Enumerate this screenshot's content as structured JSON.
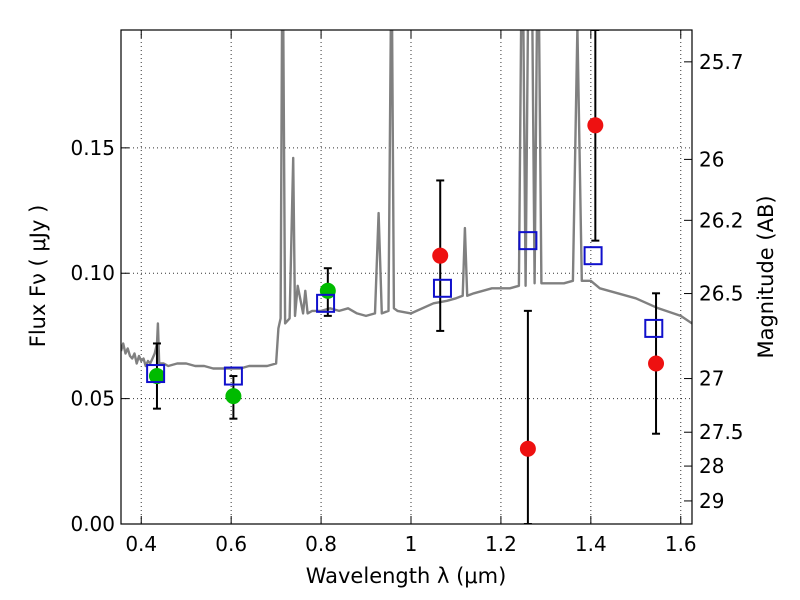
{
  "chart_data": {
    "type": "scatter",
    "xlabel": "Wavelength  λ (μm)",
    "ylabel": "Flux  Fν  ( μJy )",
    "y2label": "Magnitude (AB)",
    "xlim": [
      0.355,
      1.625
    ],
    "ylim": [
      0.0,
      0.197
    ],
    "xticks": [
      0.4,
      0.6,
      0.8,
      1.0,
      1.2,
      1.4,
      1.6
    ],
    "xtick_labels": [
      "0.4",
      "0.6",
      "0.8",
      "1",
      "1.2",
      "1.4",
      "1.6"
    ],
    "yticks": [
      0.0,
      0.05,
      0.1,
      0.15
    ],
    "ytick_labels": [
      "0.00",
      "0.05",
      "0.10",
      "0.15"
    ],
    "y2ticks": [
      {
        "label": "25.7",
        "flux": 0.1843
      },
      {
        "label": "26",
        "flux": 0.1454
      },
      {
        "label": "26.2",
        "flux": 0.1211
      },
      {
        "label": "26.5",
        "flux": 0.0919
      },
      {
        "label": "27",
        "flux": 0.058
      },
      {
        "label": "27.5",
        "flux": 0.0366
      },
      {
        "label": "28",
        "flux": 0.0231
      },
      {
        "label": "29",
        "flux": 0.0092
      }
    ],
    "grid": true,
    "colors": {
      "spectrum": "#808080",
      "green_points": "#00bb00",
      "red_points": "#ee1111",
      "model_squares": "#1010cc",
      "errorbars": "#000000"
    },
    "series": [
      {
        "kind": "line",
        "color": "#808080",
        "x": [
          0.355,
          0.36,
          0.365,
          0.37,
          0.375,
          0.38,
          0.385,
          0.39,
          0.395,
          0.4,
          0.405,
          0.41,
          0.415,
          0.42,
          0.425,
          0.43,
          0.435,
          0.437,
          0.44,
          0.45,
          0.46,
          0.48,
          0.5,
          0.52,
          0.54,
          0.56,
          0.58,
          0.6,
          0.62,
          0.64,
          0.66,
          0.68,
          0.7,
          0.705,
          0.71,
          0.713,
          0.716,
          0.72,
          0.73,
          0.738,
          0.742,
          0.748,
          0.76,
          0.765,
          0.77,
          0.78,
          0.8,
          0.82,
          0.84,
          0.86,
          0.88,
          0.9,
          0.92,
          0.928,
          0.935,
          0.95,
          0.955,
          0.958,
          0.962,
          0.97,
          1.0,
          1.05,
          1.08,
          1.1,
          1.115,
          1.12,
          1.125,
          1.14,
          1.16,
          1.18,
          1.2,
          1.22,
          1.24,
          1.245,
          1.25,
          1.255,
          1.26,
          1.27,
          1.275,
          1.28,
          1.285,
          1.29,
          1.3,
          1.34,
          1.36,
          1.37,
          1.38,
          1.4,
          1.42,
          1.46,
          1.5,
          1.55,
          1.6,
          1.625
        ],
        "y": [
          0.069,
          0.072,
          0.068,
          0.07,
          0.067,
          0.066,
          0.068,
          0.064,
          0.067,
          0.065,
          0.066,
          0.063,
          0.065,
          0.064,
          0.066,
          0.068,
          0.072,
          0.08,
          0.064,
          0.064,
          0.063,
          0.064,
          0.064,
          0.063,
          0.063,
          0.062,
          0.062,
          0.062,
          0.062,
          0.063,
          0.063,
          0.063,
          0.064,
          0.078,
          0.082,
          0.198,
          0.198,
          0.08,
          0.082,
          0.146,
          0.083,
          0.095,
          0.084,
          0.093,
          0.084,
          0.085,
          0.085,
          0.086,
          0.085,
          0.086,
          0.084,
          0.083,
          0.084,
          0.124,
          0.084,
          0.085,
          0.198,
          0.198,
          0.086,
          0.085,
          0.084,
          0.088,
          0.089,
          0.09,
          0.091,
          0.118,
          0.091,
          0.092,
          0.093,
          0.094,
          0.094,
          0.094,
          0.095,
          0.198,
          0.198,
          0.095,
          0.198,
          0.198,
          0.096,
          0.198,
          0.198,
          0.096,
          0.096,
          0.096,
          0.097,
          0.198,
          0.097,
          0.097,
          0.094,
          0.092,
          0.09,
          0.086,
          0.083,
          0.08
        ]
      },
      {
        "kind": "points",
        "marker": "circle",
        "color": "#00bb00",
        "x": [
          0.435,
          0.605,
          0.815
        ],
        "y": [
          0.059,
          0.051,
          0.093
        ],
        "yerr_low": [
          0.046,
          0.042,
          0.083
        ],
        "yerr_high": [
          0.072,
          0.059,
          0.102
        ]
      },
      {
        "kind": "points",
        "marker": "circle",
        "color": "#ee1111",
        "x": [
          1.065,
          1.26,
          1.41,
          1.545
        ],
        "y": [
          0.107,
          0.03,
          0.159,
          0.064
        ],
        "yerr_low": [
          0.077,
          0.0,
          0.113,
          0.036
        ],
        "yerr_high": [
          0.137,
          0.085,
          0.197,
          0.092
        ]
      },
      {
        "kind": "points",
        "marker": "square",
        "color": "#1010cc",
        "x": [
          0.432,
          0.605,
          0.81,
          1.07,
          1.26,
          1.405,
          1.54
        ],
        "y": [
          0.06,
          0.059,
          0.088,
          0.094,
          0.113,
          0.107,
          0.078
        ]
      }
    ]
  }
}
